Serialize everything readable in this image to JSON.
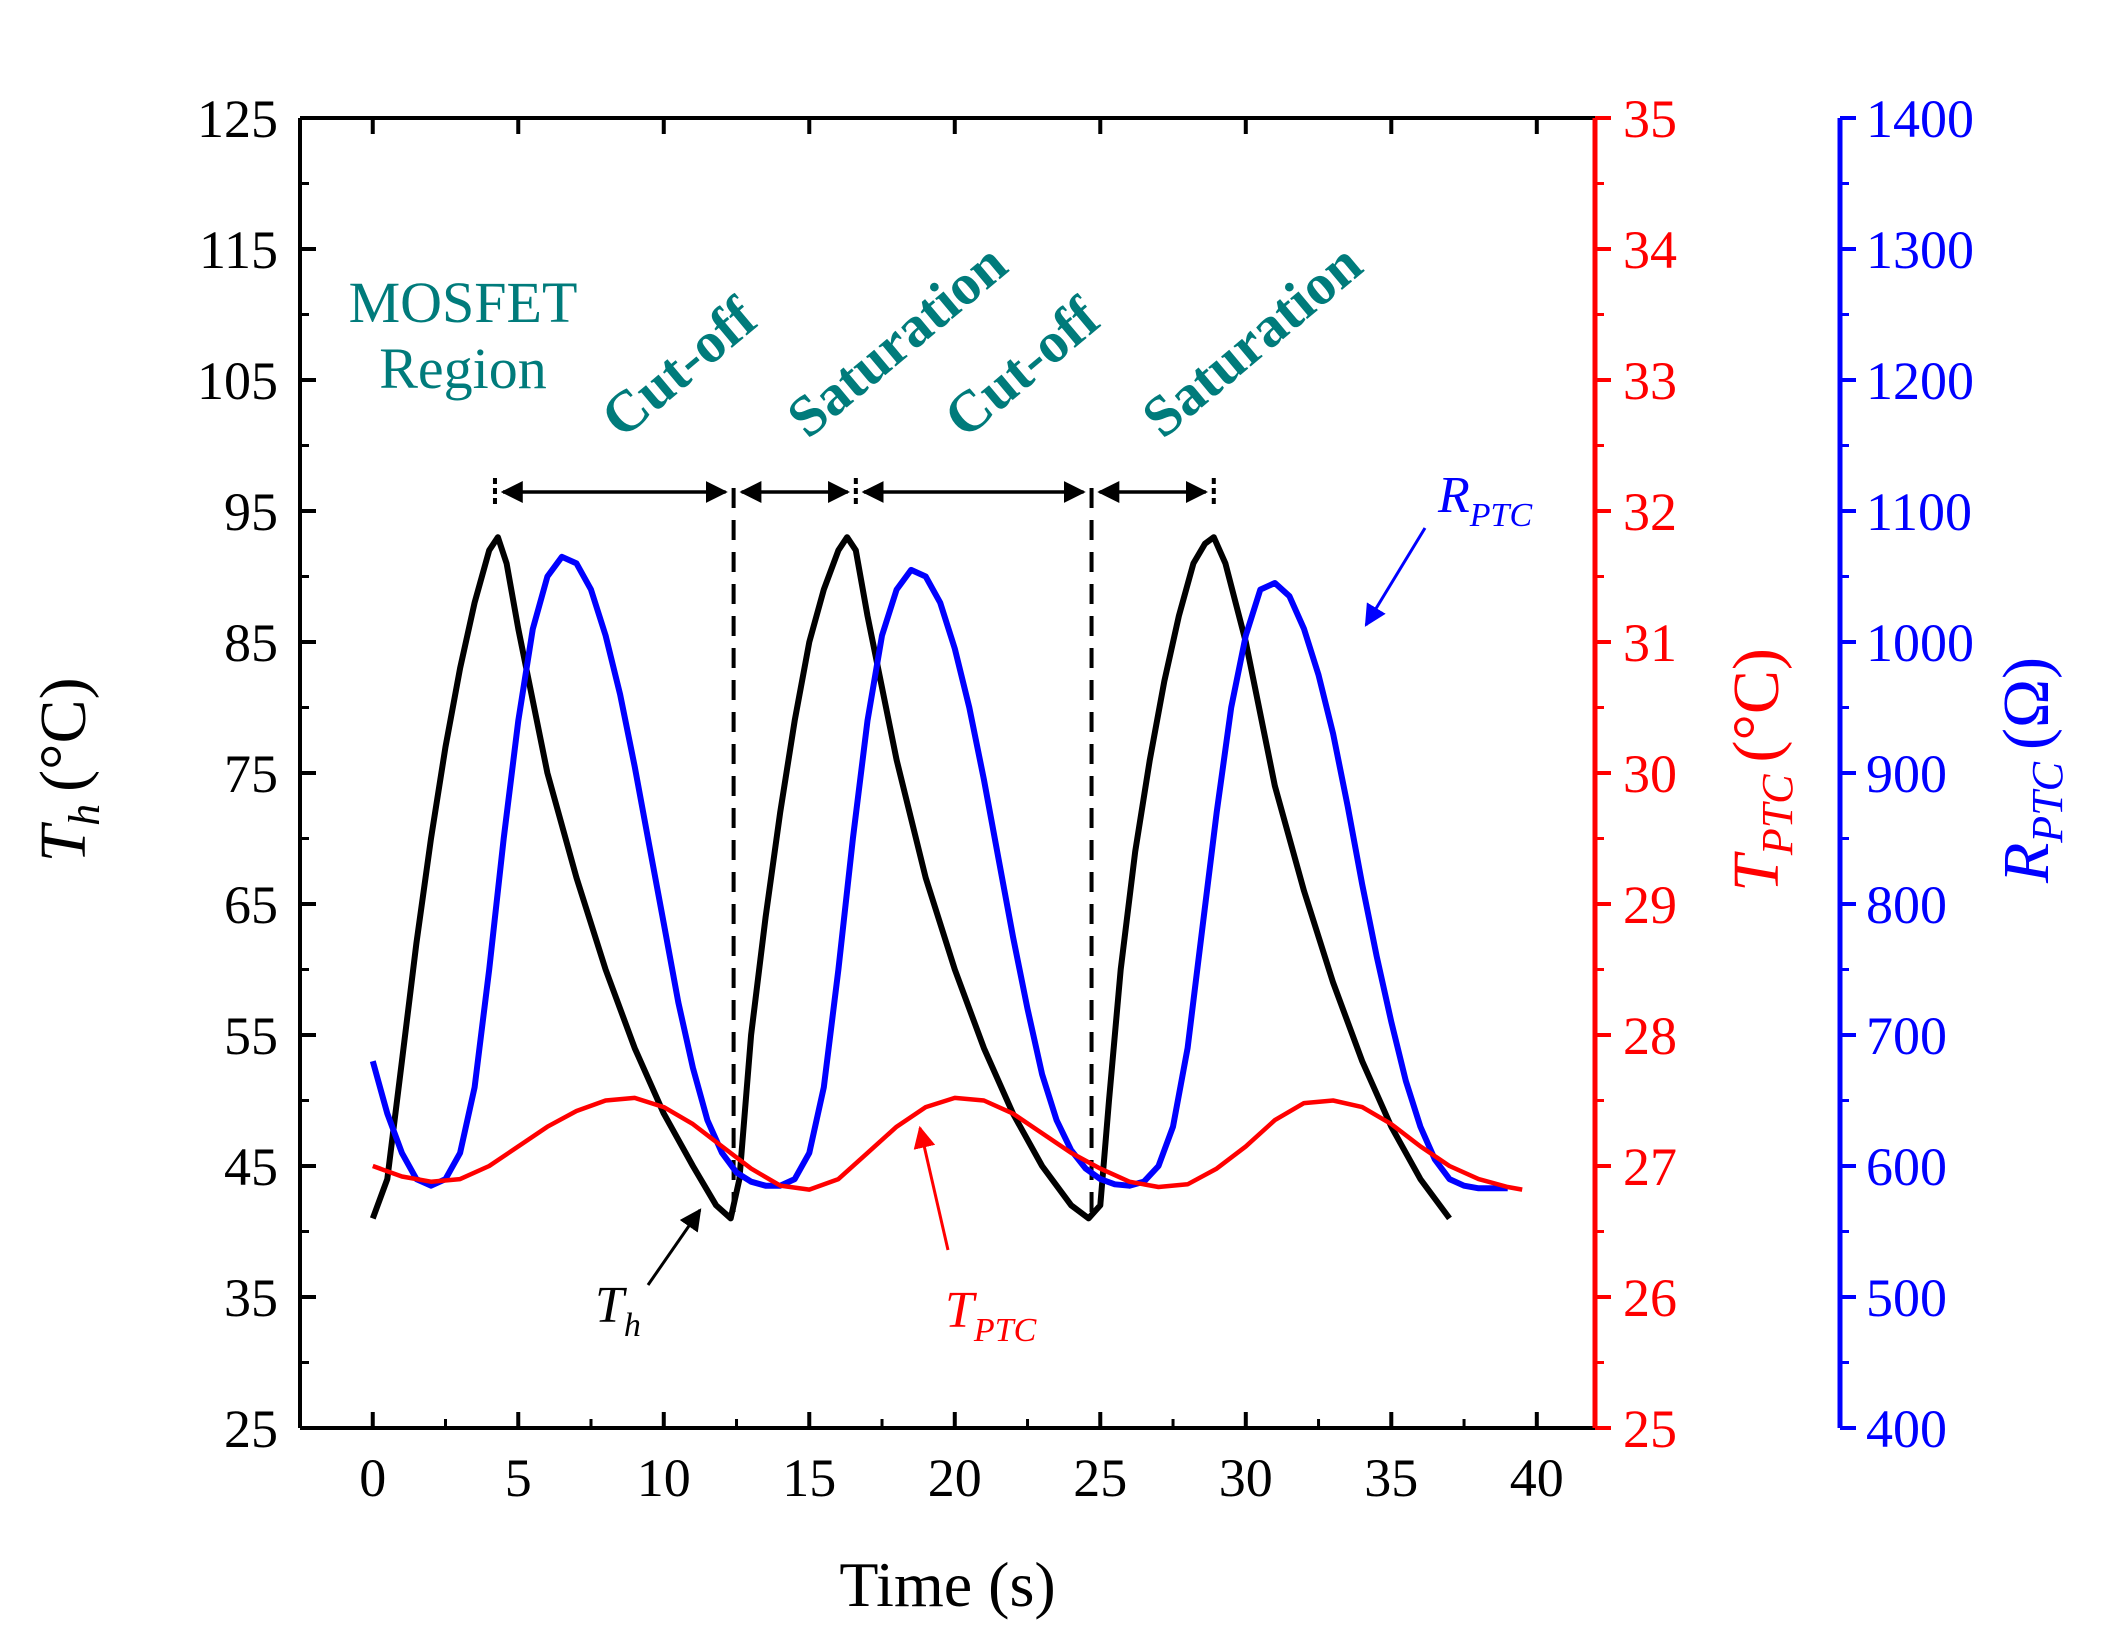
{
  "chart_data": {
    "type": "line",
    "xlabel": "Time (s)",
    "xlim": [
      -2.5,
      42
    ],
    "xticks": [
      0,
      5,
      10,
      15,
      20,
      25,
      30,
      35,
      40
    ],
    "axes": {
      "left": {
        "label_main": "T",
        "label_sub": "h",
        "label_unit": "(°C)",
        "range": [
          25,
          125
        ],
        "ticks": [
          25,
          35,
          45,
          55,
          65,
          75,
          85,
          95,
          105,
          115,
          125
        ],
        "color": "#000000"
      },
      "right1": {
        "label_main": "T",
        "label_sub": "PTC",
        "label_unit": "(°C)",
        "range": [
          25,
          35
        ],
        "ticks": [
          25,
          26,
          27,
          28,
          29,
          30,
          31,
          32,
          33,
          34,
          35
        ],
        "color": "#ff0000"
      },
      "right2": {
        "label_main": "R",
        "label_sub": "PTC",
        "label_unit": "(Ω)",
        "range": [
          400,
          1400
        ],
        "ticks": [
          400,
          500,
          600,
          700,
          800,
          900,
          1000,
          1100,
          1200,
          1300,
          1400
        ],
        "color": "#0000ff"
      }
    },
    "series": [
      {
        "key": "Th",
        "axis": "left",
        "color": "#000000",
        "x": [
          0,
          0.5,
          1,
          1.5,
          2,
          2.5,
          3,
          3.5,
          4,
          4.3,
          4.6,
          5,
          6,
          7,
          8,
          9,
          10,
          11,
          11.8,
          12.3,
          12.6,
          13,
          13.5,
          14,
          14.5,
          15,
          15.5,
          16,
          16.3,
          16.6,
          17,
          18,
          19,
          20,
          21,
          22,
          23,
          24,
          24.6,
          25,
          25.3,
          25.7,
          26.2,
          26.7,
          27.2,
          27.7,
          28.2,
          28.6,
          28.9,
          29.3,
          30,
          31,
          32,
          33,
          34,
          35,
          36,
          37
        ],
        "y": [
          41,
          44,
          53,
          62,
          70,
          77,
          83,
          88,
          92,
          93,
          91,
          86,
          75,
          67,
          60,
          54,
          49,
          45,
          42,
          41,
          44,
          55,
          64,
          72,
          79,
          85,
          89,
          92,
          93,
          92,
          87,
          76,
          67,
          60,
          54,
          49,
          45,
          42,
          41,
          42,
          50,
          60,
          69,
          76,
          82,
          87,
          91,
          92.5,
          93,
          91,
          85,
          74,
          66,
          59,
          53,
          48,
          44,
          41
        ]
      },
      {
        "key": "RPTC",
        "axis": "right2",
        "color": "#0000ff",
        "x": [
          0,
          0.5,
          1,
          1.5,
          2,
          2.5,
          3,
          3.5,
          4,
          4.5,
          5,
          5.5,
          6,
          6.5,
          7,
          7.5,
          8,
          8.5,
          9,
          9.5,
          10,
          10.5,
          11,
          11.5,
          12,
          12.5,
          13,
          13.5,
          14,
          14.5,
          15,
          15.5,
          16,
          16.5,
          17,
          17.5,
          18,
          18.5,
          19,
          19.5,
          20,
          20.5,
          21,
          21.5,
          22,
          22.5,
          23,
          23.5,
          24,
          24.5,
          25,
          25.5,
          26,
          26.5,
          27,
          27.5,
          28,
          28.5,
          29,
          29.5,
          30,
          30.5,
          31,
          31.5,
          32,
          32.5,
          33,
          33.5,
          34,
          34.5,
          35,
          35.5,
          36,
          36.5,
          37,
          37.5,
          38,
          38.5,
          39
        ],
        "y": [
          680,
          640,
          610,
          590,
          585,
          590,
          610,
          660,
          750,
          850,
          940,
          1010,
          1050,
          1065,
          1060,
          1040,
          1005,
          960,
          905,
          845,
          785,
          725,
          675,
          635,
          610,
          595,
          588,
          585,
          585,
          590,
          610,
          660,
          750,
          850,
          940,
          1005,
          1040,
          1055,
          1050,
          1030,
          995,
          950,
          895,
          835,
          775,
          720,
          670,
          635,
          612,
          598,
          590,
          586,
          585,
          588,
          600,
          630,
          690,
          780,
          870,
          950,
          1005,
          1040,
          1045,
          1035,
          1010,
          975,
          930,
          875,
          815,
          760,
          710,
          665,
          630,
          605,
          590,
          585,
          583,
          583,
          583
        ]
      },
      {
        "key": "TPTC",
        "axis": "right1",
        "color": "#ff0000",
        "x": [
          0,
          1,
          2,
          3,
          4,
          5,
          6,
          7,
          8,
          9,
          10,
          11,
          12,
          13,
          14,
          15,
          16,
          17,
          18,
          19,
          20,
          21,
          22,
          23,
          24,
          25,
          26,
          27,
          28,
          29,
          30,
          31,
          32,
          33,
          34,
          35,
          36,
          37,
          38,
          39,
          39.5
        ],
        "y": [
          27.0,
          26.92,
          26.88,
          26.9,
          27.0,
          27.15,
          27.3,
          27.42,
          27.5,
          27.52,
          27.45,
          27.32,
          27.15,
          26.98,
          26.85,
          26.82,
          26.9,
          27.1,
          27.3,
          27.45,
          27.52,
          27.5,
          27.4,
          27.25,
          27.1,
          26.98,
          26.88,
          26.84,
          26.86,
          26.98,
          27.15,
          27.35,
          27.48,
          27.5,
          27.45,
          27.32,
          27.15,
          27.0,
          26.9,
          26.84,
          26.82
        ]
      }
    ],
    "curve_labels": [
      {
        "key": "Th",
        "main": "T",
        "sub": "h",
        "color": "#000000"
      },
      {
        "key": "TPTC",
        "main": "T",
        "sub": "PTC",
        "color": "#ff0000"
      },
      {
        "key": "RPTC",
        "main": "R",
        "sub": "PTC",
        "color": "#0000ff"
      }
    ],
    "region_header": [
      "MOSFET",
      "Region"
    ],
    "regions": [
      {
        "label": "Cut-off",
        "x_start": 4.2,
        "x_end": 12.4
      },
      {
        "label": "Saturation",
        "x_start": 12.4,
        "x_end": 16.6
      },
      {
        "label": "Cut-off",
        "x_start": 16.6,
        "x_end": 24.7
      },
      {
        "label": "Saturation",
        "x_start": 24.7,
        "x_end": 28.9
      }
    ],
    "dashed_lines_x": [
      12.4,
      24.7
    ],
    "colors": {
      "region_text": "#007b7b"
    }
  }
}
